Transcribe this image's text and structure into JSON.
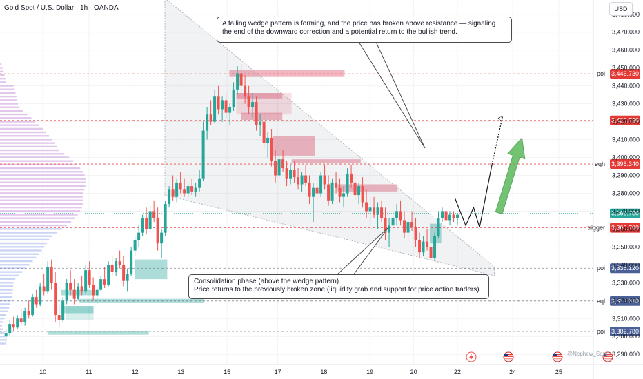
{
  "header": {
    "title": "Gold Spot / U.S. Dollar · 1h · OANDA",
    "currency_button": "USD"
  },
  "annotations": {
    "note1": "A falling wedge pattern is forming, and the price has broken above resistance — signaling the end of the downward correction and a potential return to the bullish trend.",
    "note2_line1": "Consolidation phase (above the wedge pattern).",
    "note2_line2": "Price returns to the previously broken zone (liquidity grab and support for price action traders)."
  },
  "watermark": "@Nephew_Sam",
  "colors": {
    "up": "#26a69a",
    "down": "#ef5350",
    "red_line": "#e53935",
    "grey_line": "#787b86",
    "wedge": "#b0b5bf",
    "arrow": "#5cb85c",
    "current": "#26a69a",
    "lower_badge": "#4a6096"
  },
  "chart_data": {
    "type": "candlestick",
    "title": "Gold Spot / U.S. Dollar · 1h · OANDA",
    "ylim": [
      3287,
      3488
    ],
    "y_ticks": [
      3290,
      3300,
      3310,
      3320,
      3330,
      3340,
      3350,
      3360,
      3370,
      3380,
      3390,
      3400,
      3410,
      3420,
      3430,
      3440,
      3450,
      3460,
      3470,
      3480
    ],
    "x_ticks": [
      {
        "label": "10",
        "day": 10
      },
      {
        "label": "11",
        "day": 11
      },
      {
        "label": "12",
        "day": 12
      },
      {
        "label": "13",
        "day": 13
      },
      {
        "label": "15",
        "day": 14
      },
      {
        "label": "17",
        "day": 15.1
      },
      {
        "label": "18",
        "day": 16.1
      },
      {
        "label": "19",
        "day": 17.1
      },
      {
        "label": "20",
        "day": 18.05
      },
      {
        "label": "22",
        "day": 19
      },
      {
        "label": "24",
        "day": 20.2
      },
      {
        "label": "25",
        "day": 21.2
      }
    ],
    "xlim": [
      9.07,
      21.95
    ],
    "price_levels": [
      {
        "label": "poi",
        "value": 3446.73,
        "display": "3,446.730",
        "style": "red"
      },
      {
        "label": "",
        "value": 3420.72,
        "display": "3,420.720",
        "style": "red"
      },
      {
        "label": "eqh",
        "value": 3396.34,
        "display": "3,396.340",
        "style": "red"
      },
      {
        "label": "",
        "value": 3368.75,
        "display": "3,368.750",
        "style": "current"
      },
      {
        "label": "trigger",
        "value": 3360.7,
        "display": "3,360.700",
        "style": "red"
      },
      {
        "label": "poi",
        "value": 3338.12,
        "display": "3,338.120",
        "style": "grey"
      },
      {
        "label": "eql",
        "value": 3319.81,
        "display": "3,319.810",
        "style": "grey"
      },
      {
        "label": "poi",
        "value": 3302.78,
        "display": "3,302.780",
        "style": "grey"
      }
    ],
    "wedge": {
      "upper": [
        [
          12.65,
          3489
        ],
        [
          19.8,
          3339
        ]
      ],
      "lower": [
        [
          12.65,
          3379
        ],
        [
          19.8,
          3334
        ]
      ]
    },
    "projection": [
      [
        18.95,
        3377
      ],
      [
        19.18,
        3362
      ],
      [
        19.35,
        3372
      ],
      [
        19.48,
        3361
      ],
      [
        19.75,
        3396
      ],
      [
        19.98,
        3423
      ]
    ],
    "bullish_arrow": {
      "from": [
        19.9,
        3369
      ],
      "to": [
        20.4,
        3411
      ]
    },
    "zones": [
      {
        "x": [
          14.05,
          16.55
        ],
        "y": [
          3445,
          3449
        ],
        "color": "down"
      },
      {
        "x": [
          14.2,
          15.2
        ],
        "y": [
          3433,
          3436
        ],
        "color": "down"
      },
      {
        "x": [
          14.3,
          15.2
        ],
        "y": [
          3421,
          3425
        ],
        "color": "down"
      },
      {
        "x": [
          15.0,
          15.9
        ],
        "y": [
          3401,
          3412
        ],
        "color": "down"
      },
      {
        "x": [
          15.4,
          16.9
        ],
        "y": [
          3397,
          3399
        ],
        "color": "down"
      },
      {
        "x": [
          16.4,
          17.7
        ],
        "y": [
          3381,
          3385
        ],
        "color": "down"
      },
      {
        "x": [
          12.0,
          12.7
        ],
        "y": [
          3332,
          3343
        ],
        "color": "up"
      },
      {
        "x": [
          10.4,
          11.1
        ],
        "y": [
          3323,
          3326
        ],
        "color": "up"
      },
      {
        "x": [
          10.8,
          13.5
        ],
        "y": [
          3319,
          3321
        ],
        "color": "up"
      },
      {
        "x": [
          10.4,
          11.1
        ],
        "y": [
          3313,
          3317
        ],
        "color": "up"
      },
      {
        "x": [
          10.1,
          12.3
        ],
        "y": [
          3301,
          3303
        ],
        "color": "up"
      },
      {
        "x": [
          18.4,
          18.65
        ],
        "y": [
          3352,
          3363
        ],
        "color": "up"
      }
    ],
    "bottom_icons": [
      "lightning-icon",
      "us-flag-icon",
      "us-flag-icon",
      "us-flag-icon"
    ],
    "candles": [
      [
        3300,
        3304,
        3297,
        3302
      ],
      [
        3302,
        3309,
        3300,
        3307
      ],
      [
        3307,
        3311,
        3303,
        3305
      ],
      [
        3305,
        3312,
        3304,
        3310
      ],
      [
        3310,
        3315,
        3306,
        3308
      ],
      [
        3308,
        3316,
        3306,
        3314
      ],
      [
        3314,
        3320,
        3310,
        3312
      ],
      [
        3312,
        3324,
        3311,
        3322
      ],
      [
        3322,
        3326,
        3316,
        3318
      ],
      [
        3318,
        3330,
        3317,
        3328
      ],
      [
        3328,
        3335,
        3323,
        3325
      ],
      [
        3325,
        3342,
        3324,
        3339
      ],
      [
        3339,
        3343,
        3326,
        3330
      ],
      [
        3330,
        3336,
        3308,
        3312
      ],
      [
        3312,
        3318,
        3305,
        3309
      ],
      [
        3309,
        3322,
        3308,
        3320
      ],
      [
        3320,
        3332,
        3318,
        3330
      ],
      [
        3330,
        3337,
        3323,
        3326
      ],
      [
        3326,
        3332,
        3318,
        3321
      ],
      [
        3321,
        3330,
        3320,
        3328
      ],
      [
        3328,
        3334,
        3323,
        3325
      ],
      [
        3325,
        3340,
        3324,
        3337
      ],
      [
        3337,
        3342,
        3327,
        3329
      ],
      [
        3329,
        3333,
        3320,
        3323
      ],
      [
        3323,
        3328,
        3318,
        3326
      ],
      [
        3326,
        3334,
        3325,
        3332
      ],
      [
        3332,
        3339,
        3327,
        3329
      ],
      [
        3329,
        3342,
        3328,
        3340
      ],
      [
        3340,
        3345,
        3334,
        3336
      ],
      [
        3336,
        3344,
        3334,
        3342
      ],
      [
        3342,
        3348,
        3338,
        3340
      ],
      [
        3340,
        3345,
        3328,
        3331
      ],
      [
        3331,
        3338,
        3325,
        3335
      ],
      [
        3335,
        3350,
        3334,
        3348
      ],
      [
        3348,
        3356,
        3345,
        3354
      ],
      [
        3354,
        3362,
        3350,
        3358
      ],
      [
        3358,
        3368,
        3356,
        3366
      ],
      [
        3366,
        3372,
        3357,
        3360
      ],
      [
        3360,
        3373,
        3358,
        3370
      ],
      [
        3370,
        3376,
        3364,
        3366
      ],
      [
        3366,
        3372,
        3348,
        3352
      ],
      [
        3352,
        3360,
        3344,
        3358
      ],
      [
        3358,
        3376,
        3356,
        3374
      ],
      [
        3374,
        3384,
        3372,
        3382
      ],
      [
        3382,
        3390,
        3376,
        3378
      ],
      [
        3378,
        3388,
        3375,
        3386
      ],
      [
        3386,
        3392,
        3380,
        3382
      ],
      [
        3382,
        3388,
        3378,
        3380
      ],
      [
        3380,
        3386,
        3377,
        3384
      ],
      [
        3384,
        3388,
        3379,
        3381
      ],
      [
        3381,
        3386,
        3378,
        3383
      ],
      [
        3383,
        3393,
        3381,
        3388
      ],
      [
        3388,
        3420,
        3387,
        3415
      ],
      [
        3415,
        3428,
        3410,
        3424
      ],
      [
        3424,
        3432,
        3418,
        3420
      ],
      [
        3420,
        3438,
        3419,
        3434
      ],
      [
        3434,
        3440,
        3424,
        3427
      ],
      [
        3427,
        3434,
        3420,
        3432
      ],
      [
        3432,
        3436,
        3422,
        3425
      ],
      [
        3425,
        3430,
        3418,
        3428
      ],
      [
        3428,
        3442,
        3426,
        3438
      ],
      [
        3438,
        3451,
        3435,
        3447
      ],
      [
        3447,
        3452,
        3436,
        3440
      ],
      [
        3440,
        3446,
        3430,
        3434
      ],
      [
        3434,
        3440,
        3424,
        3428
      ],
      [
        3428,
        3436,
        3422,
        3431
      ],
      [
        3431,
        3434,
        3415,
        3418
      ],
      [
        3418,
        3424,
        3412,
        3420
      ],
      [
        3420,
        3425,
        3405,
        3408
      ],
      [
        3408,
        3414,
        3400,
        3411
      ],
      [
        3411,
        3416,
        3395,
        3398
      ],
      [
        3398,
        3404,
        3386,
        3390
      ],
      [
        3390,
        3402,
        3388,
        3399
      ],
      [
        3399,
        3404,
        3392,
        3394
      ],
      [
        3394,
        3398,
        3384,
        3388
      ],
      [
        3388,
        3396,
        3385,
        3393
      ],
      [
        3393,
        3398,
        3386,
        3389
      ],
      [
        3389,
        3394,
        3382,
        3385
      ],
      [
        3385,
        3392,
        3381,
        3390
      ],
      [
        3390,
        3396,
        3384,
        3386
      ],
      [
        3386,
        3390,
        3374,
        3378
      ],
      [
        3378,
        3386,
        3364,
        3383
      ],
      [
        3383,
        3389,
        3377,
        3380
      ],
      [
        3380,
        3392,
        3378,
        3390
      ],
      [
        3390,
        3396,
        3382,
        3385
      ],
      [
        3385,
        3390,
        3373,
        3376
      ],
      [
        3376,
        3388,
        3374,
        3386
      ],
      [
        3386,
        3392,
        3380,
        3383
      ],
      [
        3383,
        3388,
        3375,
        3378
      ],
      [
        3378,
        3384,
        3372,
        3380
      ],
      [
        3380,
        3394,
        3378,
        3391
      ],
      [
        3391,
        3396,
        3383,
        3386
      ],
      [
        3386,
        3390,
        3376,
        3379
      ],
      [
        3379,
        3386,
        3374,
        3384
      ],
      [
        3384,
        3389,
        3372,
        3375
      ],
      [
        3375,
        3382,
        3366,
        3370
      ],
      [
        3370,
        3378,
        3362,
        3372
      ],
      [
        3372,
        3378,
        3366,
        3368
      ],
      [
        3368,
        3375,
        3360,
        3372
      ],
      [
        3372,
        3376,
        3364,
        3366
      ],
      [
        3366,
        3372,
        3354,
        3358
      ],
      [
        3358,
        3366,
        3350,
        3362
      ],
      [
        3362,
        3370,
        3358,
        3366
      ],
      [
        3366,
        3374,
        3362,
        3370
      ],
      [
        3370,
        3376,
        3362,
        3365
      ],
      [
        3365,
        3370,
        3355,
        3358
      ],
      [
        3358,
        3366,
        3354,
        3364
      ],
      [
        3364,
        3370,
        3359,
        3361
      ],
      [
        3361,
        3366,
        3350,
        3354
      ],
      [
        3354,
        3358,
        3344,
        3347
      ],
      [
        3347,
        3356,
        3345,
        3353
      ],
      [
        3353,
        3360,
        3348,
        3350
      ],
      [
        3350,
        3352,
        3340,
        3344
      ],
      [
        3344,
        3358,
        3342,
        3356
      ],
      [
        3356,
        3370,
        3355,
        3366
      ],
      [
        3366,
        3372,
        3364,
        3370
      ],
      [
        3370,
        3371,
        3362,
        3365
      ],
      [
        3365,
        3370,
        3362,
        3368
      ],
      [
        3368,
        3370,
        3364,
        3366
      ],
      [
        3366,
        3369,
        3362,
        3368
      ]
    ]
  }
}
